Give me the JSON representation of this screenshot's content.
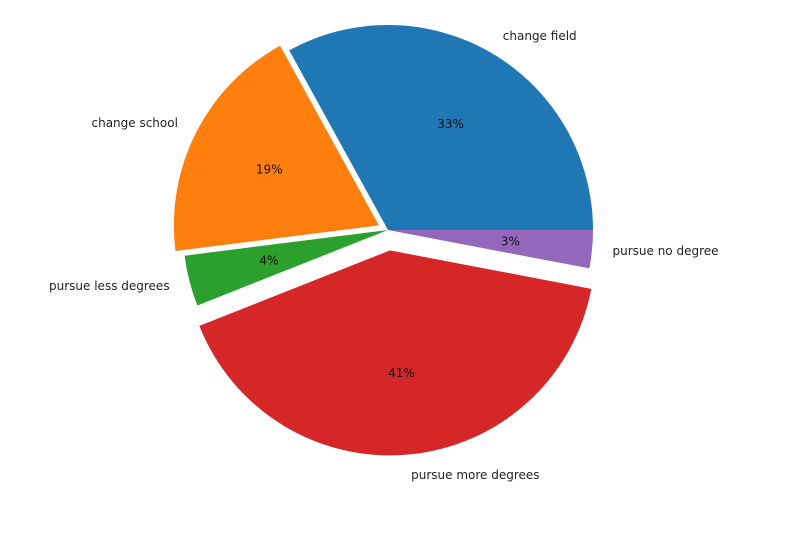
{
  "chart_data": {
    "type": "pie",
    "title": "",
    "slices": [
      {
        "label": "change field",
        "value": 33,
        "pct_label": "33%",
        "color": "#1f77b4",
        "explode": 0.0
      },
      {
        "label": "change school",
        "value": 19,
        "pct_label": "19%",
        "color": "#ff7f0e",
        "explode": 0.05
      },
      {
        "label": "pursue less degrees",
        "value": 4,
        "pct_label": "4%",
        "color": "#2ca02c",
        "explode": 0.0
      },
      {
        "label": "pursue more degrees",
        "value": 41,
        "pct_label": "41%",
        "color": "#d62728",
        "explode": 0.1
      },
      {
        "label": "pursue no degree",
        "value": 3,
        "pct_label": "3%",
        "color": "#9467bd",
        "explode": 0.0
      }
    ]
  }
}
